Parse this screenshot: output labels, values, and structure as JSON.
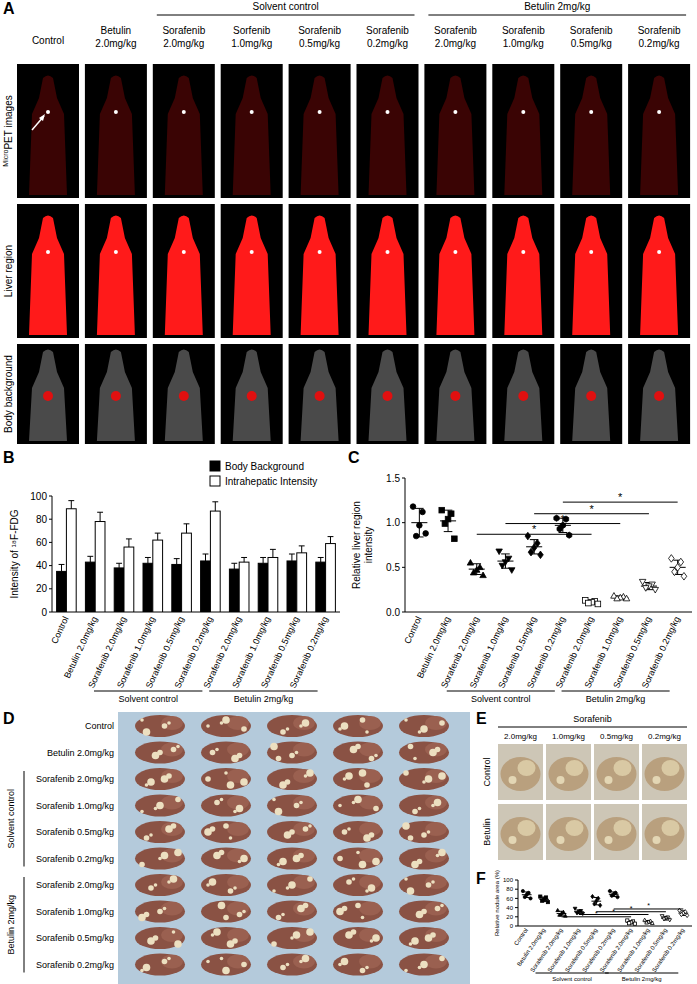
{
  "chart_data": [
    {
      "panel": "B",
      "type": "bar",
      "y_label": "Intensity of ¹⁸F-FDG",
      "categories": [
        "Control",
        "Betulin 2.0mg/kg",
        "Sorafenib 2.0mg/kg",
        "Sorafenib 1.0mg/kg",
        "Sorafenib 0.5mg/kg",
        "Sorafenib 0.2mg/kg",
        "Sorafenib 2.0mg/kg",
        "Sorafenib 1.0mg/kg",
        "Sorafenib 0.5mg/kg",
        "Sorafenib 0.2mg/kg"
      ],
      "ylim": [
        0,
        100
      ],
      "yticks": [
        0,
        20,
        40,
        60,
        80,
        100
      ],
      "legend": "top-right",
      "series": [
        {
          "name": "Body Background",
          "color": "#000000",
          "values": [
            35,
            43,
            38,
            42,
            41,
            44,
            37,
            42,
            44,
            43
          ],
          "errors": [
            6,
            5,
            4,
            5,
            5,
            6,
            5,
            5,
            6,
            4
          ]
        },
        {
          "name": "Intrahepatic Intensity",
          "color": "#ffffff",
          "values": [
            89,
            78,
            56,
            62,
            68,
            87,
            43,
            47,
            51,
            59
          ],
          "errors": [
            7,
            8,
            7,
            6,
            8,
            8,
            4,
            7,
            6,
            6
          ]
        }
      ],
      "groups": [
        {
          "label": "Solvent control",
          "categories": [
            2,
            5
          ]
        },
        {
          "label": "Betulin 2mg/kg",
          "categories": [
            6,
            9
          ]
        }
      ]
    },
    {
      "panel": "C",
      "type": "scatter",
      "y_label": [
        "Relative liver region",
        "intensity"
      ],
      "categories": [
        "Control",
        "Betulin 2.0mg/kg",
        "Sorafenib 2.0mg/kg",
        "Sorafenib 1.0mg/kg",
        "Sorafenib 0.5mg/kg",
        "Sorafenib 0.2mg/kg",
        "Sorafenib 2.0mg/kg",
        "Sorafenib 1.0mg/kg",
        "Sorafenib 0.5mg/kg",
        "Sorafenib 0.2mg/kg"
      ],
      "ylim": [
        0,
        1.5
      ],
      "yticks": [
        {
          "value": 0,
          "label": "0.0"
        },
        {
          "value": 0.5,
          "label": "0.5"
        },
        {
          "value": 1,
          "label": "1.0"
        },
        {
          "value": 1.5,
          "label": "1.5"
        }
      ],
      "points": [
        {
          "marker": "circle",
          "values": [
            1.18,
            1.12,
            0.97,
            0.85,
            0.88
          ],
          "mean": 1.0,
          "sd": 0.16
        },
        {
          "marker": "square",
          "values": [
            1.14,
            1.1,
            1.04,
            0.99,
            0.82
          ],
          "mean": 1.02,
          "sd": 0.12
        },
        {
          "marker": "triangle",
          "values": [
            0.55,
            0.5,
            0.47,
            0.44,
            0.41
          ],
          "mean": 0.48,
          "sd": 0.06
        },
        {
          "marker": "triangle-down",
          "values": [
            0.68,
            0.6,
            0.56,
            0.52,
            0.47
          ],
          "mean": 0.57,
          "sd": 0.08
        },
        {
          "marker": "diamond",
          "values": [
            0.85,
            0.77,
            0.72,
            0.67,
            0.64
          ],
          "mean": 0.73,
          "sd": 0.08
        },
        {
          "marker": "hexagon",
          "values": [
            1.05,
            1.04,
            0.97,
            0.93,
            0.86
          ],
          "mean": 0.97,
          "sd": 0.08
        },
        {
          "marker": "square-open",
          "values": [
            0.13,
            0.12,
            0.11,
            0.1,
            0.09
          ],
          "mean": 0.11,
          "sd": 0.02
        },
        {
          "marker": "triangle-open",
          "values": [
            0.18,
            0.17,
            0.16,
            0.15,
            0.15
          ],
          "mean": 0.16,
          "sd": 0.02
        },
        {
          "marker": "triangle-down-open",
          "values": [
            0.34,
            0.31,
            0.29,
            0.27,
            0.25
          ],
          "mean": 0.29,
          "sd": 0.04
        },
        {
          "marker": "diamond-open",
          "values": [
            0.6,
            0.56,
            0.5,
            0.45,
            0.4
          ],
          "mean": 0.5,
          "sd": 0.08
        }
      ],
      "comparisons": [
        {
          "from": 2,
          "to": 6,
          "y": 0.87,
          "label": "*"
        },
        {
          "from": 3,
          "to": 7,
          "y": 0.99,
          "label": "*"
        },
        {
          "from": 4,
          "to": 8,
          "y": 1.1,
          "label": "*"
        },
        {
          "from": 5,
          "to": 9,
          "y": 1.23,
          "label": "*"
        }
      ],
      "groups": [
        {
          "label": "Solvent control",
          "categories": [
            2,
            5
          ]
        },
        {
          "label": "Betulin 2mg/kg",
          "categories": [
            6,
            9
          ]
        }
      ]
    },
    {
      "panel": "F",
      "type": "scatter",
      "y_label": "Relative nodule area (%)",
      "categories": [
        "Control",
        "Betulin 2.0mg/kg",
        "Sorafenib 2.0mg/kg",
        "Sorafenib 1.0mg/kg",
        "Sorafenib 0.5mg/kg",
        "Sorafenib 0.2mg/kg",
        "Sorafenib 2.0mg/kg",
        "Sorafenib 1.0mg/kg",
        "Sorafenib 0.5mg/kg",
        "Sorafenib 0.2mg/kg"
      ],
      "ylim": [
        0,
        100
      ],
      "yticks": [
        0,
        20,
        40,
        60,
        80,
        100
      ],
      "points": [
        {
          "marker": "circle",
          "values": [
            76,
            72,
            68,
            63,
            60
          ],
          "mean": 68,
          "sd": 6
        },
        {
          "marker": "square",
          "values": [
            64,
            62,
            58,
            55,
            52
          ],
          "mean": 58,
          "sd": 5
        },
        {
          "marker": "triangle",
          "values": [
            34,
            30,
            27,
            24,
            22
          ],
          "mean": 27,
          "sd": 5
        },
        {
          "marker": "triangle-down",
          "values": [
            38,
            33,
            31,
            28,
            27
          ],
          "mean": 31,
          "sd": 4
        },
        {
          "marker": "diamond",
          "values": [
            64,
            60,
            54,
            48,
            45
          ],
          "mean": 54,
          "sd": 8
        },
        {
          "marker": "hexagon",
          "values": [
            76,
            72,
            69,
            66,
            63
          ],
          "mean": 69,
          "sd": 5
        },
        {
          "marker": "square-open",
          "values": [
            12,
            10,
            8,
            6,
            5
          ],
          "mean": 8,
          "sd": 3
        },
        {
          "marker": "triangle-open",
          "values": [
            13,
            11,
            9,
            7,
            6
          ],
          "mean": 9,
          "sd": 3
        },
        {
          "marker": "triangle-down-open",
          "values": [
            22,
            19,
            17,
            15,
            13
          ],
          "mean": 17,
          "sd": 4
        },
        {
          "marker": "diamond-open",
          "values": [
            34,
            31,
            28,
            25,
            23
          ],
          "mean": 28,
          "sd": 5
        }
      ],
      "comparisons": [
        {
          "from": 2,
          "to": 6,
          "y": 20,
          "label": "*"
        },
        {
          "from": 3,
          "to": 7,
          "y": 25,
          "label": "*"
        },
        {
          "from": 4,
          "to": 8,
          "y": 31,
          "label": "*"
        },
        {
          "from": 5,
          "to": 9,
          "y": 37,
          "label": "*"
        }
      ],
      "groups": [
        {
          "label": "Solvent control",
          "categories": [
            2,
            5
          ]
        },
        {
          "label": "Betulin 2mg/kg",
          "categories": [
            6,
            9
          ]
        }
      ]
    }
  ],
  "figure": {
    "panel_A": {
      "panel": "A",
      "group_headers": [
        {
          "label": "Solvent control",
          "columns": [
            2,
            5
          ]
        },
        {
          "label": "Betulin 2mg/kg",
          "columns": [
            6,
            9
          ]
        }
      ],
      "column_headers": [
        [
          "Control"
        ],
        [
          "Betulin",
          "2.0mg/kg"
        ],
        [
          "Sorafenib",
          "2.0mg/kg"
        ],
        [
          "Sorfenib",
          "1.0mg/kg"
        ],
        [
          "Sorafenib",
          "0.5mg/kg"
        ],
        [
          "Sorafenib",
          "0.2mg/kg"
        ],
        [
          "Sorafenib",
          "2.0mg/kg"
        ],
        [
          "Sorafenib",
          "1.0mg/kg"
        ],
        [
          "Sorafenib",
          "0.5mg/kg"
        ],
        [
          "Sorafenib",
          "0.2mg/kg"
        ]
      ],
      "row_labels": [
        {
          "sup": "Micro",
          "text": "PET images"
        },
        {
          "text": "Liver region"
        },
        {
          "text": "Body background"
        }
      ]
    },
    "panel_D": {
      "panel": "D",
      "row_labels": [
        "Control",
        "Betulin 2.0mg/kg",
        "Sorafenib 2.0mg/kg",
        "Sorafenib 1.0mg/kg",
        "Sorafenib 0.5mg/kg",
        "Sorafenib 0.2mg/kg",
        "Sorafenib 2.0mg/kg",
        "Sorafenib 1.0mg/kg",
        "Sorafenib 0.5mg/kg",
        "Sorafenib 0.2mg/kg"
      ],
      "group_labels": [
        {
          "label": "Solvent control",
          "rows": [
            2,
            5
          ]
        },
        {
          "label": "Betulin 2mg/kg",
          "rows": [
            6,
            9
          ]
        }
      ]
    },
    "panel_E": {
      "panel": "E",
      "header": "Sorafenib",
      "column_labels": [
        "2.0mg/kg",
        "1.0mg/kg",
        "0.5mg/kg",
        "0.2mg/kg"
      ],
      "row_labels": [
        "Control",
        "Betulin"
      ]
    }
  }
}
